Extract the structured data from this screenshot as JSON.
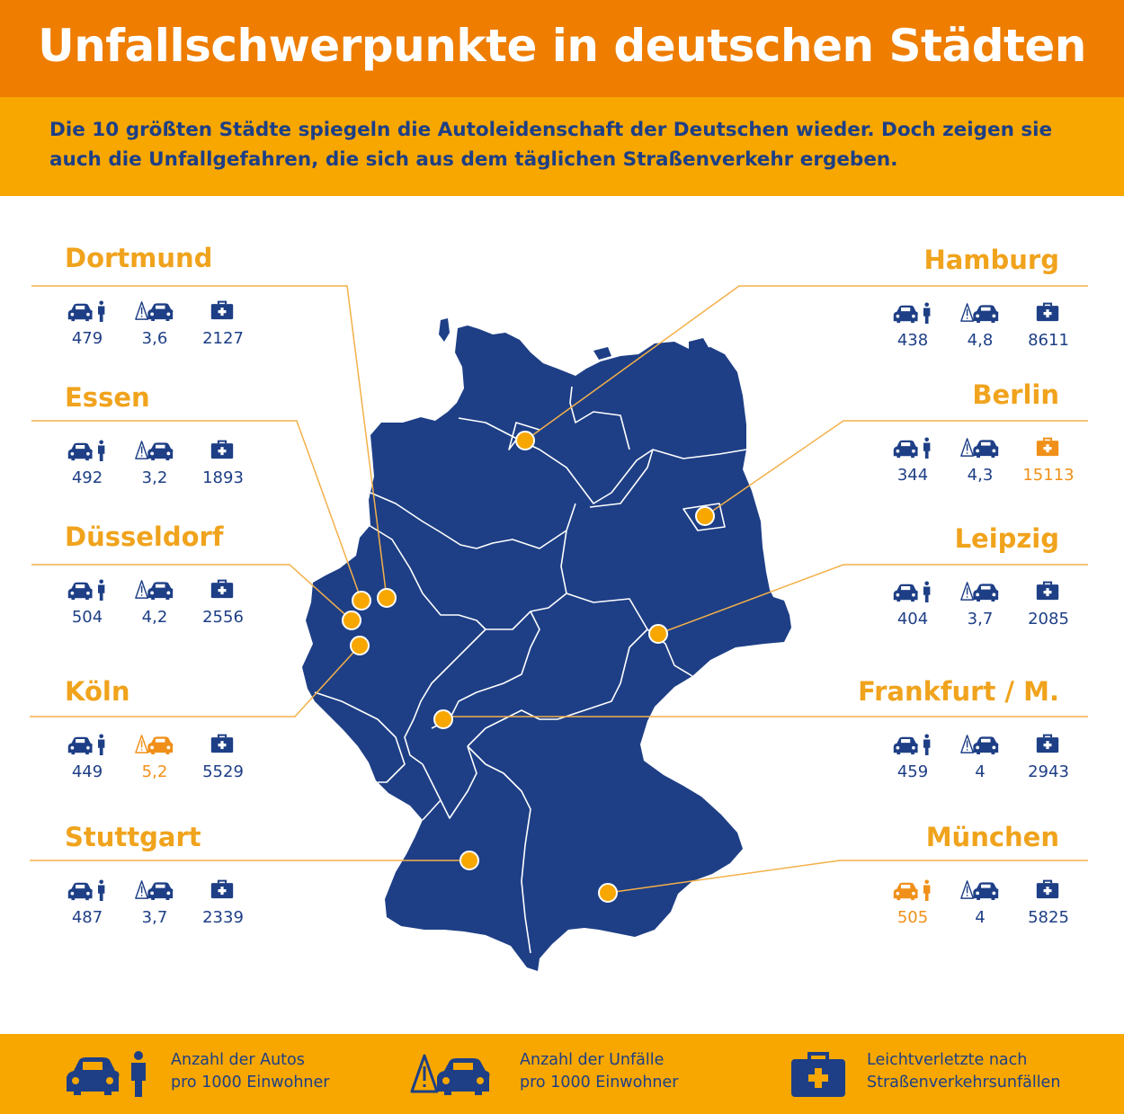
{
  "title": "Unfallschwerpunkte in deutschen Städten",
  "subtitle": "Die 10 größten Städte spiegeln die Autoleidenschaft der Deutschen wieder. Doch zeigen sie auch die Unfallgefahren, die sich aus dem täglichen Straßenverkehr ergeben.",
  "colors": {
    "orange": "#ee7d00",
    "yellow_orange": "#f7a700",
    "map_blue": "#1e3f86",
    "label_orange": "#f0a31c"
  },
  "cities": [
    {
      "name": "Dortmund",
      "cars": "479",
      "accidents": "3,6",
      "injured": "2127",
      "highlight": ""
    },
    {
      "name": "Essen",
      "cars": "492",
      "accidents": "3,2",
      "injured": "1893",
      "highlight": ""
    },
    {
      "name": "Düsseldorf",
      "cars": "504",
      "accidents": "4,2",
      "injured": "2556",
      "highlight": ""
    },
    {
      "name": "Köln",
      "cars": "449",
      "accidents": "5,2",
      "injured": "5529",
      "highlight": "accidents"
    },
    {
      "name": "Stuttgart",
      "cars": "487",
      "accidents": "3,7",
      "injured": "2339",
      "highlight": ""
    },
    {
      "name": "Hamburg",
      "cars": "438",
      "accidents": "4,8",
      "injured": "8611",
      "highlight": ""
    },
    {
      "name": "Berlin",
      "cars": "344",
      "accidents": "4,3",
      "injured": "15113",
      "highlight": "injured"
    },
    {
      "name": "Leipzig",
      "cars": "404",
      "accidents": "3,7",
      "injured": "2085",
      "highlight": ""
    },
    {
      "name": "Frankfurt / M.",
      "cars": "459",
      "accidents": "4",
      "injured": "2943",
      "highlight": ""
    },
    {
      "name": "München",
      "cars": "505",
      "accidents": "4",
      "injured": "5825",
      "highlight": "cars"
    }
  ],
  "legend": {
    "cars": "Anzahl der Autos\npro 1000 Einwohner",
    "accidents": "Anzahl der Unfälle\npro 1000 Einwohner",
    "injured": "Leichtverletzte nach\nStraßenverkehrsunfällen"
  },
  "icons": {
    "cars": "car-person-icon",
    "accidents": "warning-car-icon",
    "injured": "first-aid-kit-icon"
  }
}
